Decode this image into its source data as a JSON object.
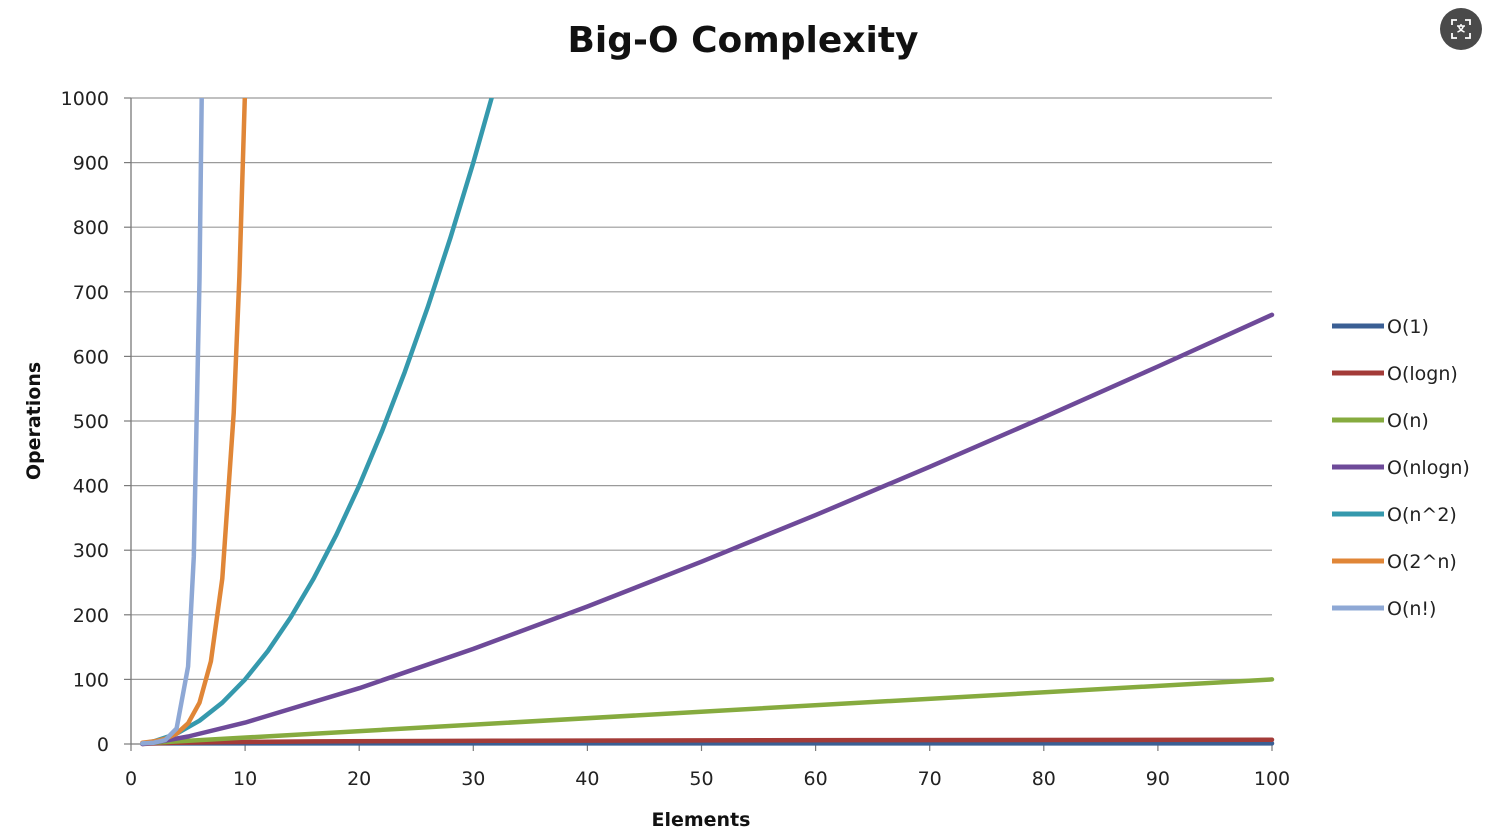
{
  "controls": {
    "translate_icon": "translate-icon"
  },
  "chart_data": {
    "type": "line",
    "title": "Big-O Complexity",
    "xlabel": "Elements",
    "ylabel": "Operations",
    "xlim": [
      0,
      100
    ],
    "ylim": [
      0,
      1000
    ],
    "x_ticks": [
      "0",
      "10",
      "20",
      "30",
      "40",
      "50",
      "60",
      "70",
      "80",
      "90",
      "100"
    ],
    "y_ticks": [
      "0",
      "100",
      "200",
      "300",
      "400",
      "500",
      "600",
      "700",
      "800",
      "900",
      "1000"
    ],
    "grid": "horizontal",
    "legend_position": "right",
    "series": [
      {
        "name": "O(1)",
        "color": "#3a5f94",
        "x": [
          1,
          100
        ],
        "y": [
          1,
          1
        ]
      },
      {
        "name": "O(logn)",
        "color": "#a33b38",
        "x": [
          1,
          2,
          4,
          8,
          16,
          32,
          64,
          100
        ],
        "y": [
          0,
          1,
          2,
          3,
          4,
          5,
          6,
          6.64
        ]
      },
      {
        "name": "O(n)",
        "color": "#86ab3f",
        "x": [
          1,
          100
        ],
        "y": [
          1,
          100
        ]
      },
      {
        "name": "O(nlogn)",
        "color": "#6e4a99",
        "x": [
          1,
          2,
          5,
          10,
          20,
          30,
          40,
          50,
          60,
          70,
          80,
          90,
          100
        ],
        "y": [
          0,
          2,
          11.6,
          33.2,
          86.4,
          147.2,
          212.9,
          282.2,
          354.4,
          429.1,
          505.8,
          584.3,
          664.4
        ]
      },
      {
        "name": "O(n^2)",
        "color": "#3599ad",
        "x": [
          1,
          2,
          4,
          6,
          8,
          10,
          12,
          14,
          16,
          18,
          20,
          22,
          24,
          26,
          28,
          30,
          31.6
        ],
        "y": [
          1,
          4,
          16,
          36,
          64,
          100,
          144,
          196,
          256,
          324,
          400,
          484,
          576,
          676,
          784,
          900,
          1000
        ]
      },
      {
        "name": "O(2^n)",
        "color": "#e08637",
        "x": [
          1,
          2,
          3,
          4,
          5,
          6,
          7,
          8,
          9,
          9.5,
          9.97
        ],
        "y": [
          2,
          4,
          8,
          16,
          32,
          64,
          128,
          256,
          512,
          724,
          1000
        ]
      },
      {
        "name": "O(n!)",
        "color": "#8ea8d5",
        "x": [
          1,
          2,
          3,
          4,
          5,
          5.5,
          6,
          6.2
        ],
        "y": [
          1,
          2,
          6,
          24,
          120,
          290,
          720,
          1000
        ]
      }
    ]
  }
}
